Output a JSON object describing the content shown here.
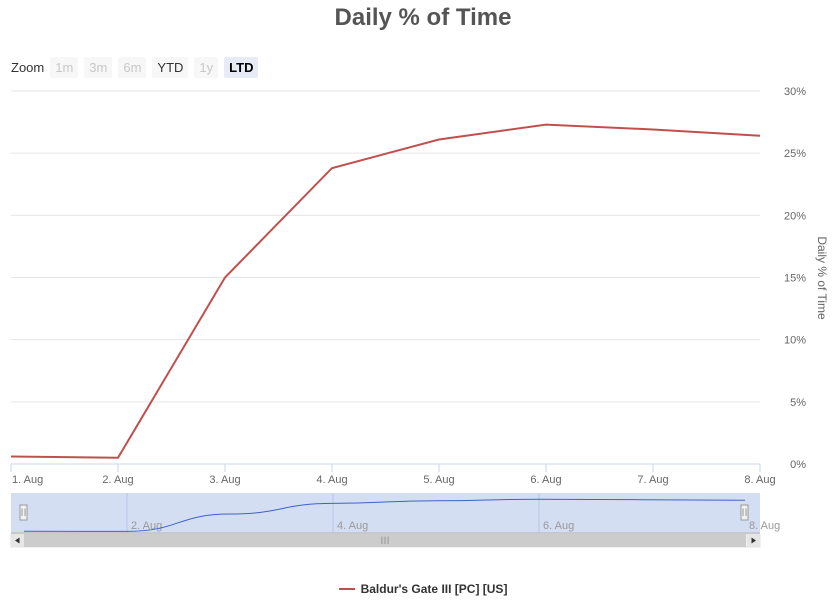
{
  "zoom": {
    "label": "Zoom",
    "buttons": [
      {
        "label": "1m",
        "state": "disabled"
      },
      {
        "label": "3m",
        "state": "disabled"
      },
      {
        "label": "6m",
        "state": "disabled"
      },
      {
        "label": "YTD",
        "state": "enabled"
      },
      {
        "label": "1y",
        "state": "disabled"
      },
      {
        "label": "LTD",
        "state": "selected"
      }
    ]
  },
  "navigator": {
    "tick_labels": [
      "2. Aug",
      "4. Aug",
      "6. Aug",
      "8. Aug"
    ],
    "scrollbar_grip": "III",
    "handle_grip": "II"
  },
  "colors": {
    "series_line": "#c0504d",
    "navigator_line": "#3e63c8",
    "navigator_fill": "#d4def3",
    "navigator_mask": "#c6d4ef",
    "grid": "#e6e6e6"
  },
  "chart_data": {
    "type": "line",
    "title": "Daily % of Time",
    "xlabel": "",
    "ylabel": "Daily % of Time",
    "categories": [
      "1. Aug",
      "2. Aug",
      "3. Aug",
      "4. Aug",
      "5. Aug",
      "6. Aug",
      "7. Aug",
      "8. Aug"
    ],
    "y_ticks": [
      "0%",
      "5%",
      "10%",
      "15%",
      "20%",
      "25%",
      "30%"
    ],
    "ylim": [
      0,
      30
    ],
    "grid": true,
    "legend_position": "bottom-center",
    "series": [
      {
        "name": "Baldur's Gate III [PC] [US]",
        "values": [
          0.6,
          0.5,
          15.0,
          23.8,
          26.1,
          27.3,
          26.9,
          26.4
        ]
      }
    ]
  }
}
